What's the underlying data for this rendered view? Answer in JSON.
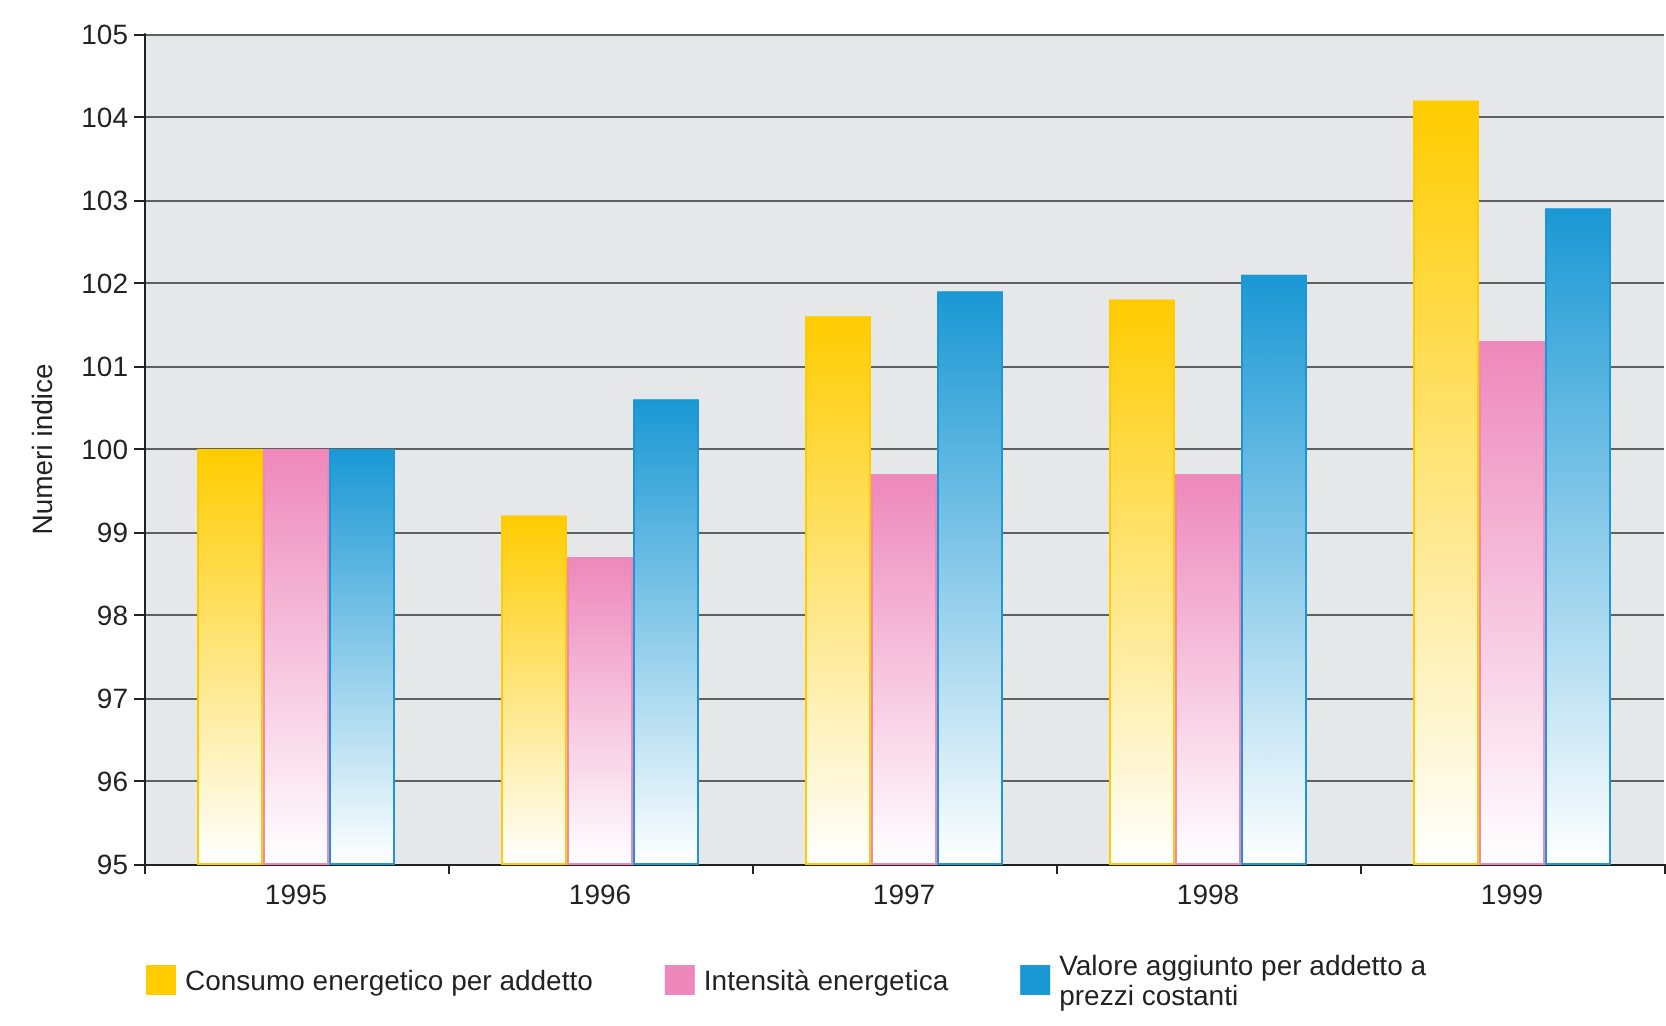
{
  "chart_data": {
    "type": "bar",
    "ylabel": "Numeri indice",
    "categories": [
      "1995",
      "1996",
      "1997",
      "1998",
      "1999"
    ],
    "series": [
      {
        "name": "Consumo energetico per addetto",
        "color": "#ffcc00",
        "values": [
          100,
          99.2,
          101.6,
          101.8,
          104.2
        ]
      },
      {
        "name": "Intensità energetica",
        "color": "#ee88bb",
        "values": [
          100,
          98.7,
          99.7,
          99.7,
          101.3
        ]
      },
      {
        "name": "Valore aggiunto per addetto a prezzi costanti",
        "color": "#1a98d5",
        "values": [
          100,
          100.6,
          101.9,
          102.1,
          102.9
        ]
      }
    ],
    "ylim": [
      95,
      105
    ],
    "yticks": [
      95,
      96,
      97,
      98,
      99,
      100,
      101,
      102,
      103,
      104,
      105
    ],
    "grid": true,
    "legend": "bottom"
  }
}
